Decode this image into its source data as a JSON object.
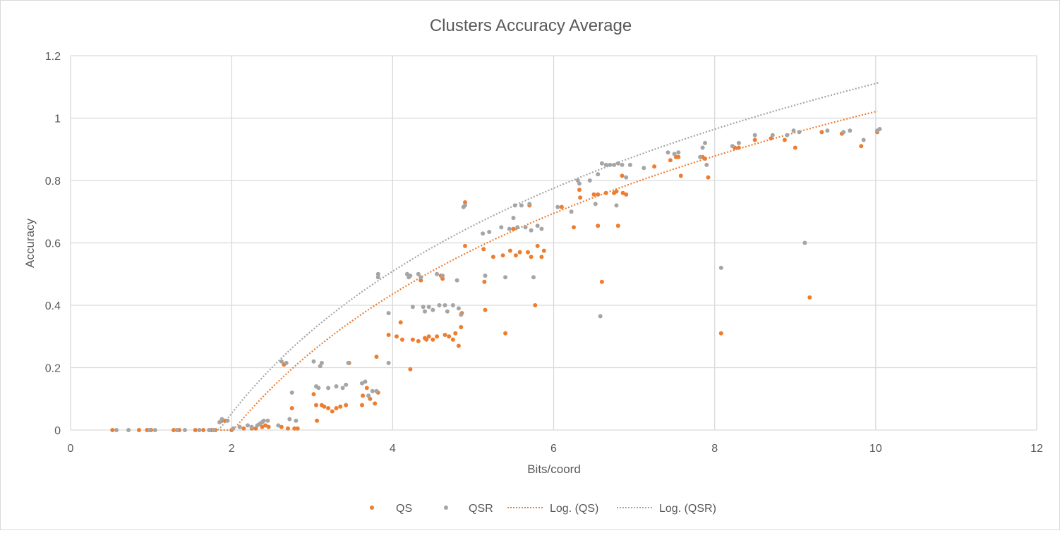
{
  "chart_data": {
    "type": "scatter",
    "title": "Clusters Accuracy Average",
    "xlabel": "Bits/coord",
    "ylabel": "Accuracy",
    "xlim": [
      0,
      12
    ],
    "ylim": [
      0,
      1.2
    ],
    "x_ticks": [
      "0",
      "2",
      "4",
      "6",
      "8",
      "10",
      "12"
    ],
    "y_ticks": [
      "0",
      "0.2",
      "0.4",
      "0.6",
      "0.8",
      "1",
      "1.2"
    ],
    "grid": true,
    "legend_position": "bottom",
    "colors": {
      "QS": "#ed7d31",
      "QSR": "#a5a5a5"
    },
    "legend": [
      "QS",
      "QSR",
      "Log. (QS)",
      "Log. (QSR)"
    ],
    "series": [
      {
        "name": "QS",
        "points": [
          [
            0.52,
            0
          ],
          [
            0.85,
            0
          ],
          [
            0.95,
            0
          ],
          [
            1.0,
            0
          ],
          [
            1.28,
            0
          ],
          [
            1.35,
            0
          ],
          [
            1.55,
            0
          ],
          [
            1.65,
            0
          ],
          [
            1.75,
            0
          ],
          [
            1.8,
            0
          ],
          [
            1.88,
            0.03
          ],
          [
            1.92,
            0.03
          ],
          [
            2.0,
            0
          ],
          [
            2.15,
            0.005
          ],
          [
            2.25,
            0.005
          ],
          [
            2.3,
            0.005
          ],
          [
            2.38,
            0.01
          ],
          [
            2.42,
            0.015
          ],
          [
            2.46,
            0.01
          ],
          [
            2.62,
            0.01
          ],
          [
            2.65,
            0.21
          ],
          [
            2.7,
            0.005
          ],
          [
            2.75,
            0.07
          ],
          [
            2.78,
            0.005
          ],
          [
            2.82,
            0.005
          ],
          [
            3.02,
            0.115
          ],
          [
            3.05,
            0.08
          ],
          [
            3.06,
            0.03
          ],
          [
            3.12,
            0.08
          ],
          [
            3.15,
            0.075
          ],
          [
            3.2,
            0.07
          ],
          [
            3.25,
            0.06
          ],
          [
            3.3,
            0.07
          ],
          [
            3.35,
            0.075
          ],
          [
            3.42,
            0.08
          ],
          [
            3.46,
            0.215
          ],
          [
            3.62,
            0.08
          ],
          [
            3.63,
            0.11
          ],
          [
            3.68,
            0.135
          ],
          [
            3.72,
            0.1
          ],
          [
            3.78,
            0.085
          ],
          [
            3.8,
            0.235
          ],
          [
            3.82,
            0.12
          ],
          [
            3.95,
            0.305
          ],
          [
            4.05,
            0.3
          ],
          [
            4.1,
            0.345
          ],
          [
            4.12,
            0.29
          ],
          [
            4.22,
            0.195
          ],
          [
            4.25,
            0.29
          ],
          [
            4.32,
            0.285
          ],
          [
            4.35,
            0.48
          ],
          [
            4.4,
            0.295
          ],
          [
            4.42,
            0.29
          ],
          [
            4.45,
            0.3
          ],
          [
            4.5,
            0.29
          ],
          [
            4.55,
            0.3
          ],
          [
            4.6,
            0.495
          ],
          [
            4.62,
            0.485
          ],
          [
            4.65,
            0.305
          ],
          [
            4.7,
            0.3
          ],
          [
            4.75,
            0.29
          ],
          [
            4.78,
            0.31
          ],
          [
            4.82,
            0.27
          ],
          [
            4.85,
            0.33
          ],
          [
            4.86,
            0.375
          ],
          [
            4.9,
            0.59
          ],
          [
            4.9,
            0.73
          ],
          [
            5.13,
            0.58
          ],
          [
            5.14,
            0.475
          ],
          [
            5.15,
            0.385
          ],
          [
            5.25,
            0.555
          ],
          [
            5.37,
            0.56
          ],
          [
            5.4,
            0.31
          ],
          [
            5.46,
            0.575
          ],
          [
            5.5,
            0.645
          ],
          [
            5.53,
            0.56
          ],
          [
            5.58,
            0.57
          ],
          [
            5.68,
            0.57
          ],
          [
            5.7,
            0.72
          ],
          [
            5.72,
            0.555
          ],
          [
            5.77,
            0.4
          ],
          [
            5.8,
            0.59
          ],
          [
            5.85,
            0.555
          ],
          [
            5.88,
            0.575
          ],
          [
            6.1,
            0.715
          ],
          [
            6.25,
            0.65
          ],
          [
            6.32,
            0.77
          ],
          [
            6.33,
            0.745
          ],
          [
            6.5,
            0.755
          ],
          [
            6.55,
            0.655
          ],
          [
            6.55,
            0.755
          ],
          [
            6.6,
            0.475
          ],
          [
            6.65,
            0.76
          ],
          [
            6.75,
            0.76
          ],
          [
            6.78,
            0.765
          ],
          [
            6.8,
            0.655
          ],
          [
            6.85,
            0.815
          ],
          [
            6.86,
            0.76
          ],
          [
            6.9,
            0.755
          ],
          [
            7.25,
            0.845
          ],
          [
            7.45,
            0.865
          ],
          [
            7.52,
            0.875
          ],
          [
            7.55,
            0.875
          ],
          [
            7.58,
            0.815
          ],
          [
            7.85,
            0.875
          ],
          [
            7.88,
            0.87
          ],
          [
            7.92,
            0.81
          ],
          [
            8.08,
            0.31
          ],
          [
            8.25,
            0.905
          ],
          [
            8.3,
            0.905
          ],
          [
            8.5,
            0.93
          ],
          [
            8.7,
            0.935
          ],
          [
            8.87,
            0.93
          ],
          [
            9.0,
            0.905
          ],
          [
            9.18,
            0.425
          ],
          [
            9.33,
            0.955
          ],
          [
            9.58,
            0.95
          ],
          [
            9.82,
            0.91
          ],
          [
            10.02,
            0.955
          ]
        ]
      },
      {
        "name": "QSR",
        "points": [
          [
            0.57,
            0
          ],
          [
            0.72,
            0
          ],
          [
            0.98,
            0
          ],
          [
            1.05,
            0
          ],
          [
            1.32,
            0
          ],
          [
            1.42,
            0
          ],
          [
            1.6,
            0
          ],
          [
            1.72,
            0
          ],
          [
            1.78,
            0
          ],
          [
            1.85,
            0.025
          ],
          [
            1.88,
            0.035
          ],
          [
            1.95,
            0.03
          ],
          [
            2.02,
            0.005
          ],
          [
            2.1,
            0.01
          ],
          [
            2.2,
            0.015
          ],
          [
            2.25,
            0.01
          ],
          [
            2.32,
            0.015
          ],
          [
            2.35,
            0.02
          ],
          [
            2.38,
            0.025
          ],
          [
            2.4,
            0.03
          ],
          [
            2.45,
            0.03
          ],
          [
            2.58,
            0.015
          ],
          [
            2.62,
            0.22
          ],
          [
            2.68,
            0.215
          ],
          [
            2.72,
            0.035
          ],
          [
            2.75,
            0.12
          ],
          [
            2.8,
            0.03
          ],
          [
            3.02,
            0.22
          ],
          [
            3.05,
            0.14
          ],
          [
            3.08,
            0.135
          ],
          [
            3.1,
            0.205
          ],
          [
            3.12,
            0.215
          ],
          [
            3.2,
            0.135
          ],
          [
            3.3,
            0.14
          ],
          [
            3.38,
            0.135
          ],
          [
            3.42,
            0.145
          ],
          [
            3.45,
            0.215
          ],
          [
            3.62,
            0.15
          ],
          [
            3.66,
            0.155
          ],
          [
            3.7,
            0.11
          ],
          [
            3.75,
            0.125
          ],
          [
            3.8,
            0.125
          ],
          [
            3.82,
            0.5
          ],
          [
            3.82,
            0.49
          ],
          [
            3.95,
            0.375
          ],
          [
            3.95,
            0.215
          ],
          [
            4.18,
            0.5
          ],
          [
            4.2,
            0.49
          ],
          [
            4.22,
            0.495
          ],
          [
            4.25,
            0.395
          ],
          [
            4.32,
            0.5
          ],
          [
            4.35,
            0.49
          ],
          [
            4.38,
            0.395
          ],
          [
            4.4,
            0.38
          ],
          [
            4.45,
            0.395
          ],
          [
            4.5,
            0.385
          ],
          [
            4.55,
            0.5
          ],
          [
            4.58,
            0.4
          ],
          [
            4.62,
            0.495
          ],
          [
            4.65,
            0.4
          ],
          [
            4.68,
            0.38
          ],
          [
            4.75,
            0.4
          ],
          [
            4.8,
            0.48
          ],
          [
            4.82,
            0.39
          ],
          [
            4.85,
            0.37
          ],
          [
            4.88,
            0.715
          ],
          [
            4.9,
            0.72
          ],
          [
            5.12,
            0.63
          ],
          [
            5.15,
            0.495
          ],
          [
            5.2,
            0.635
          ],
          [
            5.35,
            0.65
          ],
          [
            5.4,
            0.49
          ],
          [
            5.45,
            0.645
          ],
          [
            5.5,
            0.68
          ],
          [
            5.52,
            0.72
          ],
          [
            5.55,
            0.65
          ],
          [
            5.6,
            0.72
          ],
          [
            5.65,
            0.65
          ],
          [
            5.7,
            0.725
          ],
          [
            5.72,
            0.64
          ],
          [
            5.75,
            0.49
          ],
          [
            5.8,
            0.655
          ],
          [
            5.85,
            0.645
          ],
          [
            6.05,
            0.715
          ],
          [
            6.22,
            0.7
          ],
          [
            6.3,
            0.8
          ],
          [
            6.32,
            0.79
          ],
          [
            6.45,
            0.8
          ],
          [
            6.52,
            0.725
          ],
          [
            6.55,
            0.82
          ],
          [
            6.58,
            0.365
          ],
          [
            6.6,
            0.855
          ],
          [
            6.65,
            0.85
          ],
          [
            6.7,
            0.85
          ],
          [
            6.75,
            0.85
          ],
          [
            6.78,
            0.72
          ],
          [
            6.8,
            0.855
          ],
          [
            6.85,
            0.85
          ],
          [
            6.9,
            0.81
          ],
          [
            6.95,
            0.85
          ],
          [
            7.12,
            0.84
          ],
          [
            7.42,
            0.89
          ],
          [
            7.5,
            0.885
          ],
          [
            7.55,
            0.89
          ],
          [
            7.82,
            0.875
          ],
          [
            7.85,
            0.905
          ],
          [
            7.88,
            0.92
          ],
          [
            7.9,
            0.85
          ],
          [
            8.08,
            0.52
          ],
          [
            8.22,
            0.91
          ],
          [
            8.3,
            0.92
          ],
          [
            8.5,
            0.945
          ],
          [
            8.72,
            0.945
          ],
          [
            8.9,
            0.945
          ],
          [
            8.98,
            0.96
          ],
          [
            9.05,
            0.955
          ],
          [
            9.12,
            0.6
          ],
          [
            9.4,
            0.96
          ],
          [
            9.6,
            0.955
          ],
          [
            9.68,
            0.96
          ],
          [
            9.85,
            0.93
          ],
          [
            10.02,
            0.96
          ],
          [
            10.05,
            0.965
          ]
        ]
      }
    ],
    "trendlines": [
      {
        "name": "Log. (QS)",
        "type": "logarithmic",
        "a": 0.6385,
        "b": -0.4494,
        "x_range": [
          1.86,
          10.02
        ]
      },
      {
        "name": "Log. (QSR)",
        "type": "logarithmic",
        "a": 0.6571,
        "b": -0.4021,
        "x_range": [
          1.83,
          10.05
        ]
      }
    ]
  }
}
